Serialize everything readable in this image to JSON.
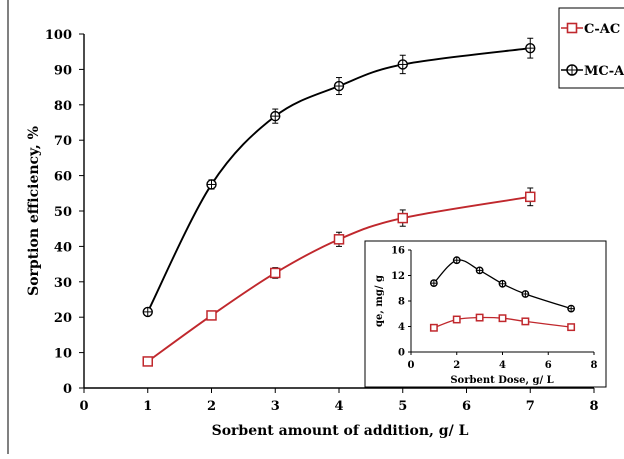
{
  "chart_data": [
    {
      "type": "line",
      "xlabel": "Sorbent amount of addition, g/ L",
      "ylabel": "Sorption efficiency, %",
      "xlim": [
        0,
        8
      ],
      "ylim": [
        0,
        100
      ],
      "xticks": [
        0,
        1,
        2,
        3,
        4,
        5,
        6,
        7,
        8
      ],
      "yticks": [
        0,
        10,
        20,
        30,
        40,
        50,
        60,
        70,
        80,
        90,
        100
      ],
      "grid": false,
      "legend_position": "top-right",
      "series": [
        {
          "name": "C-AC",
          "color": "#c0282d",
          "marker": "open-square",
          "x": [
            1,
            2,
            3,
            4,
            5,
            7
          ],
          "y": [
            7.5,
            20.5,
            32.5,
            42.0,
            48.0,
            54.0
          ],
          "error": [
            0.8,
            1.0,
            1.5,
            2.0,
            2.3,
            2.5
          ]
        },
        {
          "name": "MC-AC",
          "color": "#000000",
          "marker": "open-circle-cross",
          "x": [
            1,
            2,
            3,
            4,
            5,
            7
          ],
          "y": [
            21.5,
            57.5,
            76.8,
            85.3,
            91.4,
            96.0
          ],
          "error": [
            0.8,
            1.3,
            2.0,
            2.4,
            2.6,
            2.8
          ]
        }
      ]
    },
    {
      "type": "line",
      "role": "inset",
      "xlabel": "Sorbent Dose, g/ L",
      "ylabel": "qe, mg/ g",
      "xlim": [
        0,
        8
      ],
      "ylim": [
        0,
        16
      ],
      "xticks": [
        0,
        2,
        4,
        6,
        8
      ],
      "yticks": [
        0,
        4,
        8,
        12,
        16
      ],
      "grid": false,
      "series": [
        {
          "name": "C-AC",
          "color": "#c0282d",
          "marker": "open-square",
          "x": [
            1,
            2,
            3,
            4,
            5,
            7
          ],
          "y": [
            3.8,
            5.1,
            5.4,
            5.3,
            4.8,
            3.9
          ]
        },
        {
          "name": "MC-AC",
          "color": "#000000",
          "marker": "open-circle-cross",
          "x": [
            1,
            2,
            3,
            4,
            5,
            7
          ],
          "y": [
            10.8,
            14.4,
            12.8,
            10.7,
            9.1,
            6.8
          ]
        }
      ]
    }
  ]
}
